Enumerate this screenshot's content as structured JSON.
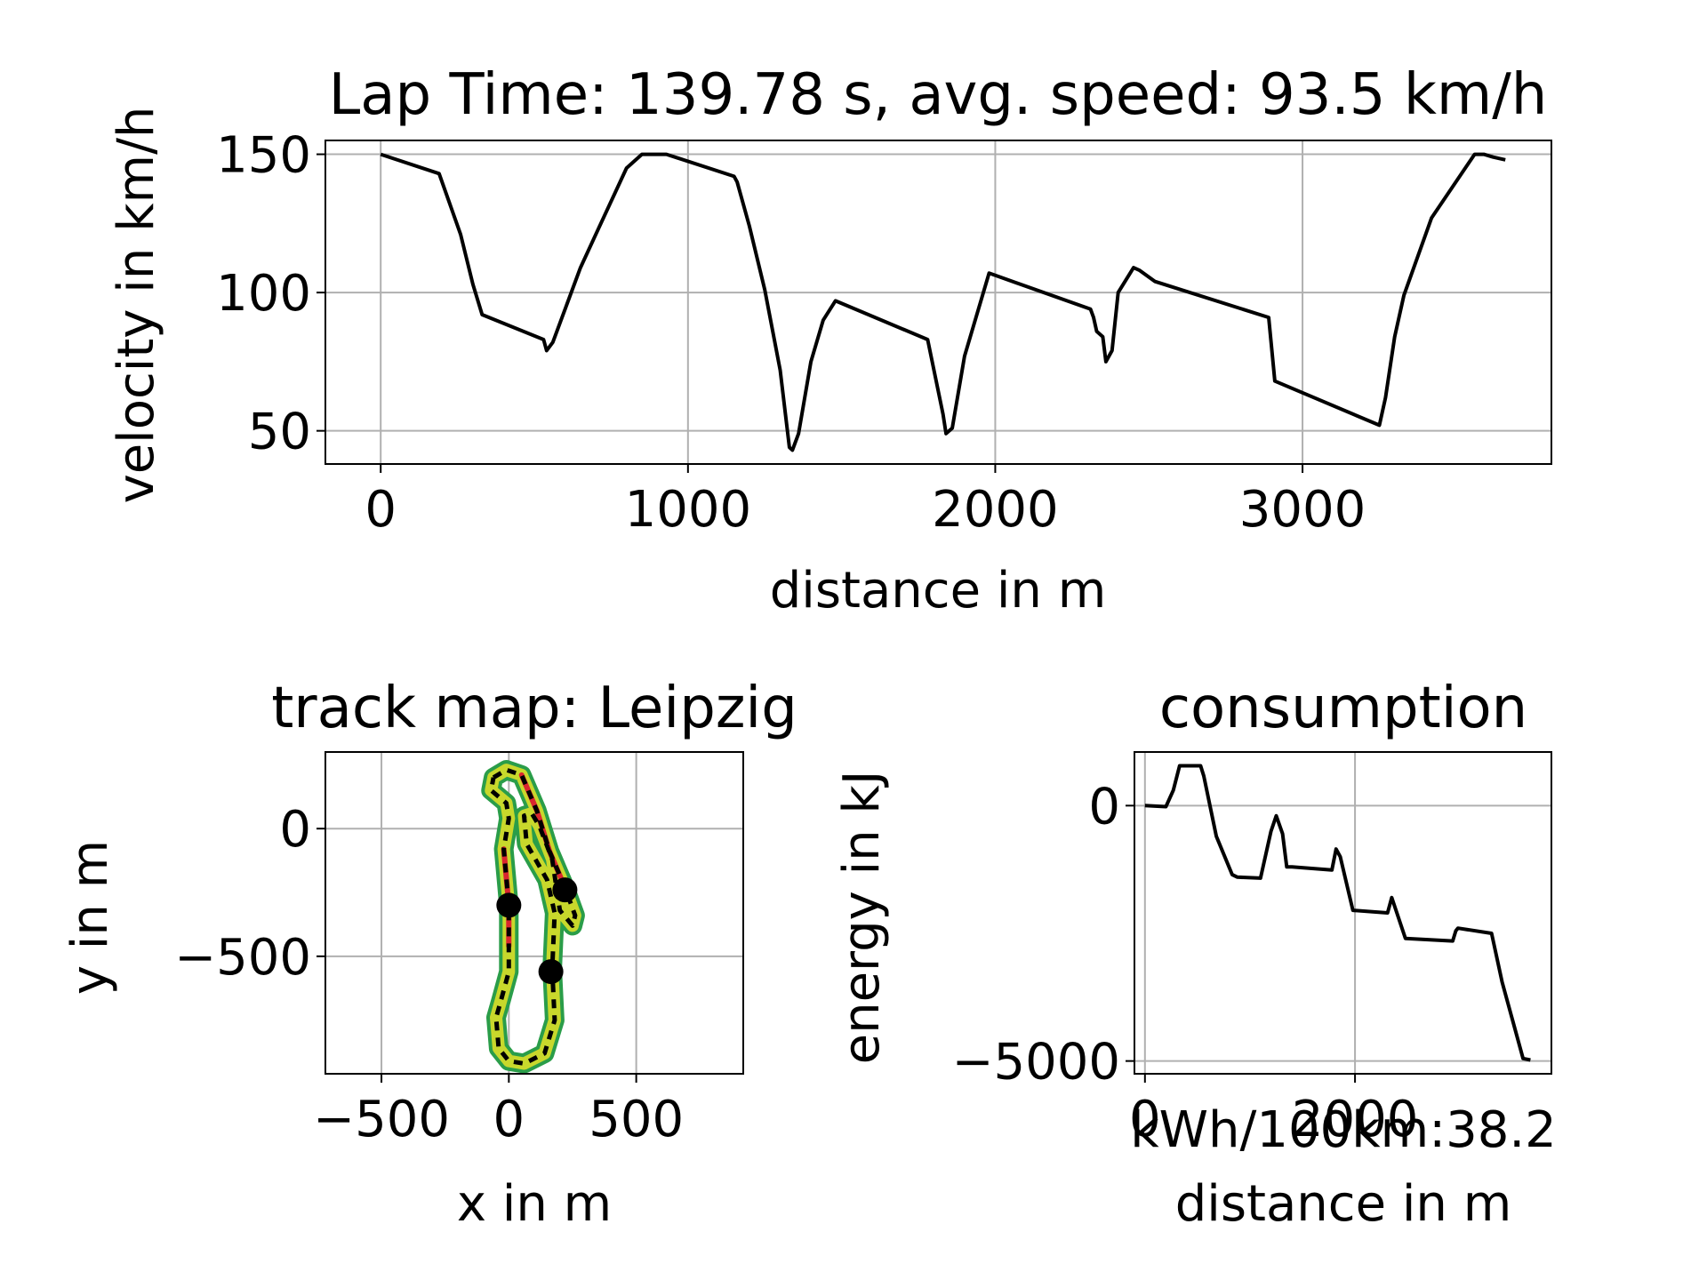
{
  "chart_data": [
    {
      "type": "line",
      "title": "Lap Time: 139.78 s, avg. speed: 93.5 km/h",
      "xlabel": "distance in m",
      "ylabel": "velocity in km/h",
      "xlim": [
        -180,
        3810
      ],
      "ylim": [
        38,
        155
      ],
      "xticks": [
        0,
        1000,
        2000,
        3000
      ],
      "yticks": [
        50,
        100,
        150
      ],
      "xtick_labels": [
        "0",
        "1000",
        "2000",
        "3000"
      ],
      "ytick_labels": [
        "50",
        "100",
        "150"
      ],
      "grid": true,
      "line_color": "#000000",
      "x": [
        0,
        190,
        260,
        300,
        330,
        530,
        540,
        560,
        650,
        700,
        800,
        850,
        930,
        1150,
        1160,
        1200,
        1250,
        1300,
        1330,
        1340,
        1360,
        1400,
        1440,
        1480,
        1780,
        1830,
        1840,
        1860,
        1900,
        1980,
        2310,
        2320,
        2330,
        2350,
        2360,
        2380,
        2400,
        2450,
        2470,
        2520,
        2890,
        2910,
        3250,
        3270,
        3300,
        3330,
        3420,
        3560,
        3590,
        3620,
        3660
      ],
      "values": [
        150,
        143,
        121,
        103,
        92,
        83,
        79,
        82,
        109,
        121,
        145,
        150,
        150,
        142,
        140,
        124,
        101,
        72,
        44,
        43,
        49,
        75,
        90,
        97,
        83,
        56,
        49,
        51,
        77,
        107,
        94,
        91,
        86,
        84,
        75,
        79,
        100,
        109,
        108,
        104,
        91,
        68,
        52,
        62,
        84,
        99,
        127,
        150,
        150,
        149,
        148
      ]
    },
    {
      "type": "scatter",
      "title": "track map: Leipzig",
      "xlabel": "x in m",
      "ylabel": "y in m",
      "xlim": [
        -720,
        920
      ],
      "ylim": [
        -960,
        300
      ],
      "xticks": [
        -500,
        0,
        500
      ],
      "yticks": [
        0,
        -500
      ],
      "xtick_labels": [
        "−500",
        "0",
        "500"
      ],
      "ytick_labels": [
        "0",
        "−500"
      ],
      "grid": true,
      "colors": {
        "outer": "#2a9d49",
        "fill": "#c8d82c",
        "hot": "#d9262f",
        "center": "#000000"
      },
      "track": [
        [
          -60,
          200
        ],
        [
          -10,
          230
        ],
        [
          50,
          210
        ],
        [
          110,
          70
        ],
        [
          160,
          -90
        ],
        [
          220,
          -230
        ],
        [
          260,
          -340
        ],
        [
          250,
          -380
        ],
        [
          200,
          -320
        ],
        [
          170,
          -120
        ],
        [
          120,
          10
        ],
        [
          90,
          60
        ],
        [
          60,
          50
        ],
        [
          70,
          -60
        ],
        [
          150,
          -200
        ],
        [
          180,
          -330
        ],
        [
          170,
          -550
        ],
        [
          180,
          -750
        ],
        [
          140,
          -880
        ],
        [
          60,
          -920
        ],
        [
          0,
          -910
        ],
        [
          -40,
          -860
        ],
        [
          -50,
          -740
        ],
        [
          -30,
          -670
        ],
        [
          0,
          -560
        ],
        [
          0,
          -300
        ],
        [
          -20,
          -80
        ],
        [
          0,
          40
        ],
        [
          -10,
          100
        ],
        [
          -70,
          150
        ],
        [
          -60,
          200
        ]
      ],
      "hot_segments": [
        [
          [
            50,
            210
          ],
          [
            110,
            70
          ],
          [
            160,
            -90
          ],
          [
            220,
            -230
          ]
        ],
        [
          [
            -20,
            -80
          ],
          [
            0,
            -300
          ],
          [
            0,
            -460
          ]
        ]
      ],
      "markers": [
        [
          0,
          -300
        ],
        [
          220,
          -240
        ],
        [
          165,
          -560
        ]
      ]
    },
    {
      "type": "line",
      "title": "consumption",
      "xlabel": "distance in m",
      "ylabel": "energy in kJ",
      "xlim": [
        -100,
        3870
      ],
      "ylim": [
        -5250,
        1050
      ],
      "xticks": [
        0,
        2000
      ],
      "yticks": [
        0,
        -5000
      ],
      "xtick_labels": [
        "0",
        "2000"
      ],
      "ytick_labels": [
        "0",
        "−5000"
      ],
      "annotation": "kWh/100km:38.2",
      "grid": true,
      "line_color": "#000000",
      "x": [
        0,
        200,
        270,
        330,
        530,
        560,
        680,
        830,
        880,
        1100,
        1200,
        1250,
        1310,
        1350,
        1400,
        1780,
        1820,
        1860,
        1980,
        2310,
        2350,
        2390,
        2480,
        2930,
        2960,
        2980,
        3300,
        3400,
        3500,
        3600,
        3670
      ],
      "values": [
        0,
        -20,
        300,
        780,
        780,
        580,
        -600,
        -1350,
        -1400,
        -1420,
        -500,
        -200,
        -550,
        -1200,
        -1200,
        -1260,
        -850,
        -1000,
        -2050,
        -2100,
        -1800,
        -2050,
        -2600,
        -2650,
        -2450,
        -2400,
        -2500,
        -3450,
        -4200,
        -4950,
        -4980
      ]
    }
  ]
}
